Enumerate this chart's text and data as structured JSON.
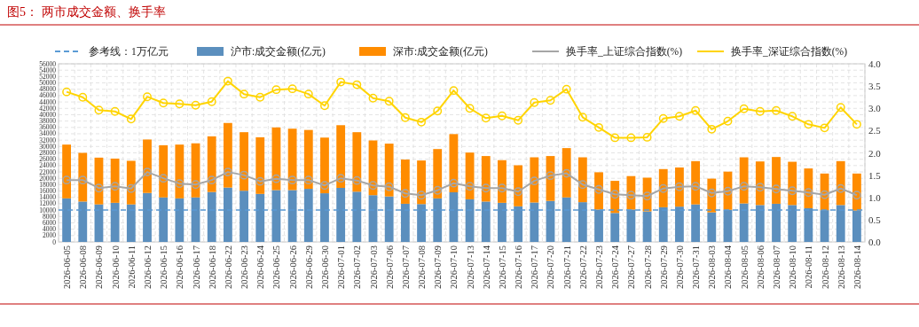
{
  "chart_data": {
    "type": "bar",
    "title": "图5：  两市成交金额、换手率",
    "categories": [
      "2026-06-05",
      "2026-06-08",
      "2026-06-09",
      "2026-06-10",
      "2026-06-11",
      "2026-06-12",
      "2026-06-15",
      "2026-06-16",
      "2026-06-17",
      "2026-06-18",
      "2026-06-22",
      "2026-06-23",
      "2026-06-24",
      "2026-06-25",
      "2026-06-26",
      "2026-06-29",
      "2026-06-30",
      "2026-07-01",
      "2026-07-02",
      "2026-07-03",
      "2026-07-06",
      "2026-07-07",
      "2026-07-08",
      "2026-07-09",
      "2026-07-10",
      "2026-07-13",
      "2026-07-14",
      "2026-07-15",
      "2026-07-16",
      "2026-07-17",
      "2026-07-20",
      "2026-07-21",
      "2026-07-22",
      "2026-07-23",
      "2026-07-24",
      "2026-07-27",
      "2026-07-28",
      "2026-07-29",
      "2026-07-30",
      "2026-07-31",
      "2026-08-03",
      "2026-08-04",
      "2026-08-05",
      "2026-08-06",
      "2026-08-07",
      "2026-08-10",
      "2026-08-11",
      "2026-08-12",
      "2026-08-13",
      "2026-08-14"
    ],
    "stacked": true,
    "series": [
      {
        "name": "沪市:成交金额(亿元)",
        "color": "#5b8fbe",
        "values": [
          13700,
          12700,
          11800,
          12300,
          11800,
          15400,
          14000,
          13700,
          14000,
          15700,
          17100,
          16100,
          15100,
          16300,
          16300,
          16700,
          15300,
          17000,
          15800,
          14700,
          14300,
          12000,
          11900,
          13700,
          15600,
          13400,
          12700,
          12300,
          11200,
          12400,
          12900,
          14000,
          12500,
          10200,
          9100,
          10200,
          9600,
          10900,
          11100,
          11800,
          9300,
          10100,
          12100,
          11600,
          12000,
          11600,
          10600,
          10000,
          11600,
          9900
        ]
      },
      {
        "name": "深市:成交金额(亿元)",
        "color": "#ff8c00",
        "values": [
          16900,
          15300,
          14700,
          13900,
          13700,
          16800,
          16400,
          16900,
          17000,
          17500,
          20300,
          18400,
          17800,
          19700,
          19300,
          18500,
          17500,
          19700,
          18700,
          17200,
          16600,
          13900,
          13700,
          15500,
          18300,
          14700,
          14300,
          13400,
          12900,
          14200,
          14100,
          15500,
          14100,
          11700,
          10100,
          10500,
          10600,
          12000,
          12300,
          13600,
          10600,
          12000,
          14500,
          13700,
          14700,
          13600,
          12500,
          11500,
          13800,
          11600
        ]
      },
      {
        "name": "换手率_上证综合指数(%)",
        "type": "line",
        "axis": "y2",
        "color": "#a6a6a6",
        "values": [
          1.39,
          1.39,
          1.21,
          1.25,
          1.2,
          1.57,
          1.43,
          1.31,
          1.29,
          1.39,
          1.57,
          1.5,
          1.36,
          1.42,
          1.39,
          1.39,
          1.27,
          1.43,
          1.38,
          1.27,
          1.24,
          1.09,
          1.05,
          1.16,
          1.32,
          1.25,
          1.21,
          1.21,
          1.13,
          1.37,
          1.49,
          1.54,
          1.29,
          1.18,
          1.07,
          1.05,
          1.03,
          1.2,
          1.24,
          1.25,
          1.1,
          1.14,
          1.25,
          1.23,
          1.19,
          1.15,
          1.11,
          1.06,
          1.2,
          1.05
        ]
      },
      {
        "name": "换手率_深证综合指数(%)",
        "type": "line",
        "axis": "y2",
        "color": "#ffd400",
        "values": [
          3.37,
          3.25,
          2.96,
          2.93,
          2.76,
          3.26,
          3.12,
          3.1,
          3.07,
          3.15,
          3.61,
          3.32,
          3.25,
          3.42,
          3.44,
          3.32,
          3.06,
          3.59,
          3.53,
          3.23,
          3.16,
          2.79,
          2.69,
          2.94,
          3.4,
          3.0,
          2.78,
          2.83,
          2.73,
          3.13,
          3.18,
          3.43,
          2.8,
          2.57,
          2.34,
          2.34,
          2.35,
          2.77,
          2.82,
          2.95,
          2.53,
          2.71,
          2.99,
          2.93,
          2.95,
          2.82,
          2.64,
          2.56,
          3.02,
          2.64
        ]
      }
    ],
    "ref_lines": [
      {
        "axis": "y",
        "value": 10000,
        "label": "参考线：1万亿元",
        "color": "#5b9bd5",
        "line_style": "dashed"
      }
    ],
    "ylim": [
      0,
      56000
    ],
    "yticks": [
      0,
      2000,
      4000,
      6000,
      8000,
      10000,
      12000,
      14000,
      16000,
      18000,
      20000,
      22000,
      24000,
      26000,
      28000,
      30000,
      32000,
      34000,
      36000,
      38000,
      40000,
      42000,
      44000,
      46000,
      48000,
      50000,
      52000,
      54000,
      56000
    ],
    "y2lim": [
      0,
      4
    ],
    "y2ticks": [
      {
        "value": 0,
        "label": "0.0"
      },
      {
        "value": 0.5,
        "label": "0.5"
      },
      {
        "value": 1,
        "label": "1.0"
      },
      {
        "value": 1.5,
        "label": "1.5"
      },
      {
        "value": 2,
        "label": "2.0"
      },
      {
        "value": 2.5,
        "label": "2.5"
      },
      {
        "value": 3,
        "label": "3.0"
      },
      {
        "value": 3.5,
        "label": "3.5"
      },
      {
        "value": 4,
        "label": "4.0"
      }
    ],
    "grid": true,
    "legend": "top",
    "marker": "circle",
    "line_style": "solid"
  }
}
